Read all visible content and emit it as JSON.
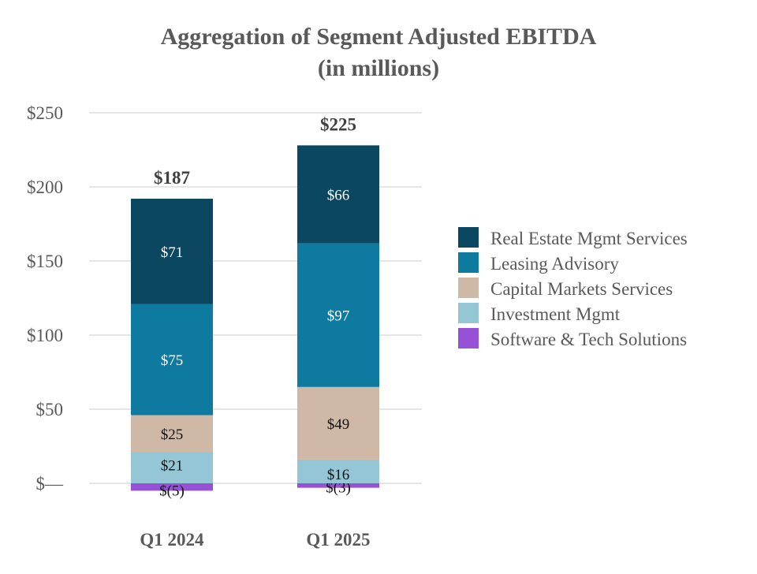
{
  "chart_data": {
    "type": "bar",
    "stacked": true,
    "title": "Aggregation of Segment Adjusted EBITDA",
    "subtitle": "(in millions)",
    "xlabel": "",
    "ylabel": "",
    "ylim": [
      0,
      250
    ],
    "yticks": [
      0,
      50,
      100,
      150,
      200,
      250
    ],
    "ytick_labels": [
      "$—",
      "$50",
      "$100",
      "$150",
      "$200",
      "$250"
    ],
    "categories": [
      "Q1 2024",
      "Q1 2025"
    ],
    "totals": [
      187,
      225
    ],
    "total_labels": [
      "$187",
      "$225"
    ],
    "grid": true,
    "legend_position": "right",
    "series": [
      {
        "name": "Software & Tech Solutions",
        "color": "#9651d6",
        "values": [
          -5,
          -3
        ],
        "labels": [
          "$(5)",
          "$(3)"
        ],
        "label_color": "#111111"
      },
      {
        "name": "Investment Mgmt",
        "color": "#95c6d6",
        "values": [
          21,
          16
        ],
        "labels": [
          "$21",
          "$16"
        ],
        "label_color": "#111111"
      },
      {
        "name": "Capital Markets Services",
        "color": "#d0b8a6",
        "values": [
          25,
          49
        ],
        "labels": [
          "$25",
          "$49"
        ],
        "label_color": "#111111"
      },
      {
        "name": "Leasing Advisory",
        "color": "#0f7aa0",
        "values": [
          75,
          97
        ],
        "labels": [
          "$75",
          "$97"
        ],
        "label_color": "#ffffff"
      },
      {
        "name": "Real Estate Mgmt Services",
        "color": "#0b4760",
        "values": [
          71,
          66
        ],
        "labels": [
          "$71",
          "$66"
        ],
        "label_color": "#ffffff"
      }
    ],
    "legend_order": [
      "Real Estate Mgmt Services",
      "Leasing Advisory",
      "Capital Markets Services",
      "Investment Mgmt",
      "Software & Tech Solutions"
    ]
  }
}
